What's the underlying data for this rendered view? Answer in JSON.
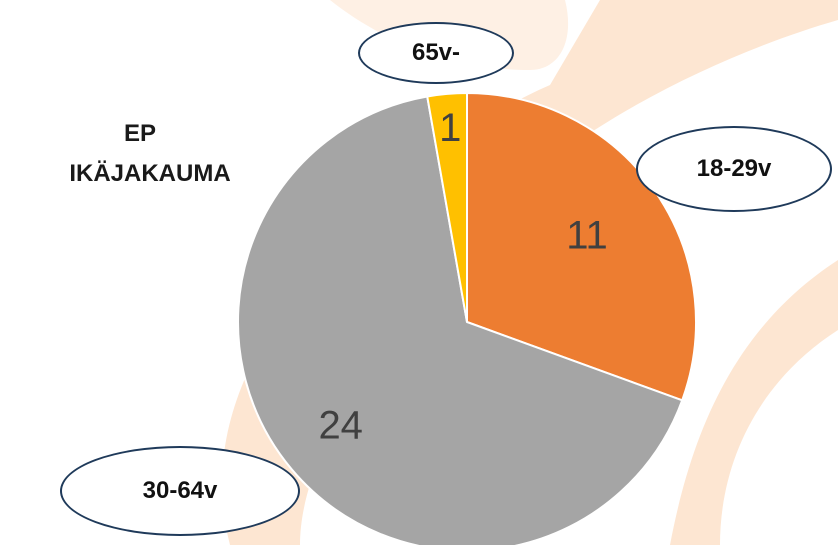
{
  "title": {
    "line1": "EP",
    "line2": "IKÄJAKAUMA"
  },
  "chart_data": {
    "type": "pie",
    "title": "EP IKÄJAKAUMA",
    "slices": [
      {
        "label": "18-29v",
        "value": 11,
        "color": "#ED7D31"
      },
      {
        "label": "30-64v",
        "value": 24,
        "color": "#A5A5A5"
      },
      {
        "label": "65v-",
        "value": 1,
        "color": "#FFC000"
      }
    ],
    "start_angle_deg": 0,
    "direction": "clockwise",
    "slice_border_color": "#ffffff",
    "data_label_color": "#404040"
  },
  "background": {
    "watermark_color": "#FDE3CC"
  }
}
